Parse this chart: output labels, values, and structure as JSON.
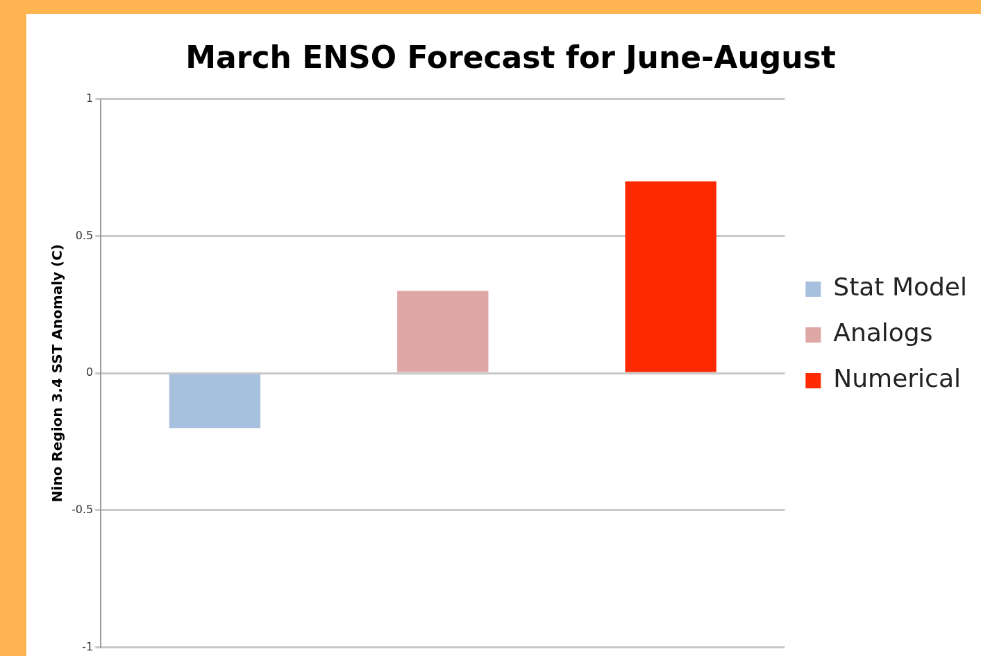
{
  "chart_data": {
    "type": "bar",
    "title": "March ENSO Forecast for June-August",
    "ylabel": "Nino Region 3.4 SST Anomaly (C)",
    "categories": [
      null,
      null,
      null
    ],
    "series": [
      {
        "name": "Stat Model",
        "color": "#a7c0de",
        "values": [
          -0.2,
          null,
          null
        ]
      },
      {
        "name": "Analogs",
        "color": "#dfa6a6",
        "values": [
          null,
          0.3,
          null
        ]
      },
      {
        "name": "Numerical",
        "color": "#ff2a00",
        "values": [
          null,
          null,
          0.7
        ]
      }
    ],
    "ylim": [
      -1,
      1
    ],
    "yticks": [
      -1,
      -0.5,
      0,
      0.5,
      1
    ],
    "grid": "y",
    "legend": "right",
    "tick_labels": "y"
  }
}
